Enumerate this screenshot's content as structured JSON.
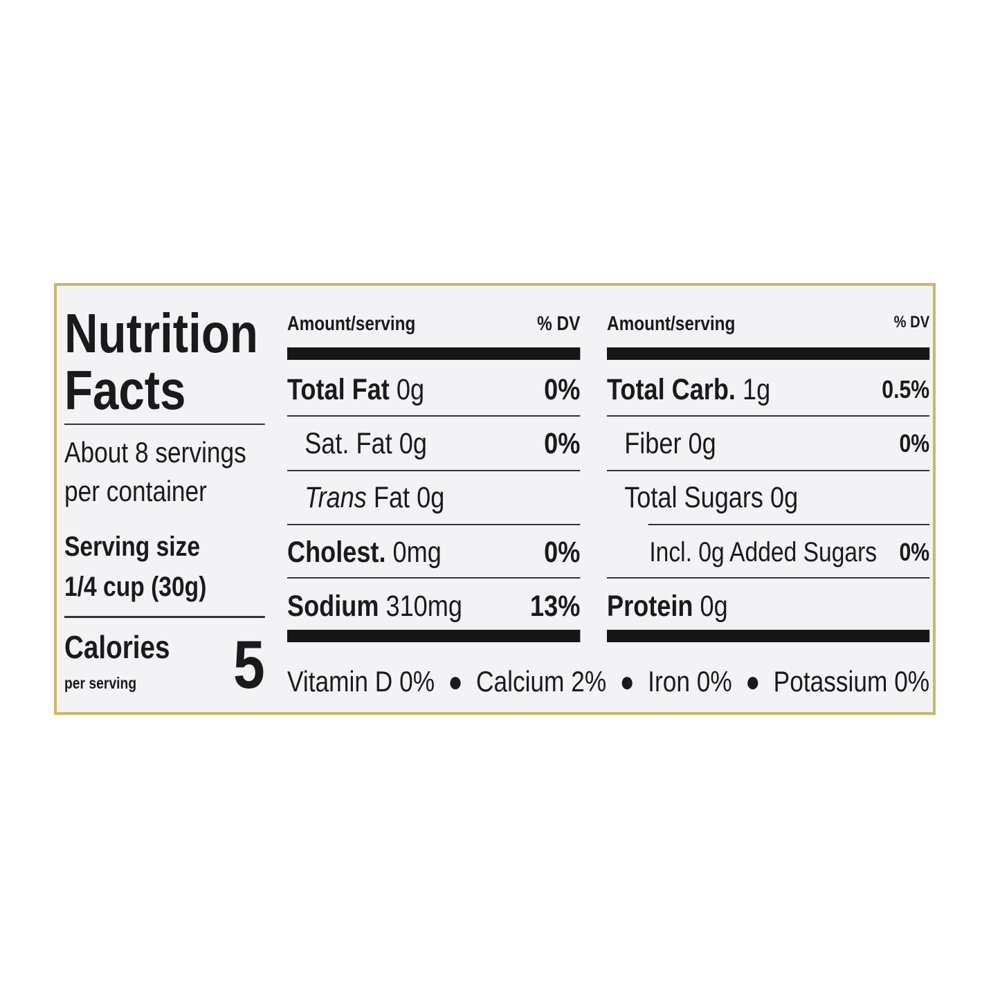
{
  "label": {
    "title": [
      "Nutrition",
      "Facts"
    ],
    "servings": [
      "About 8 servings",
      "per container"
    ],
    "serving_size": {
      "label": "Serving size",
      "value": "1/4 cup (30g)"
    },
    "calories": {
      "label": "Calories",
      "sublabel": "per serving",
      "value": 5
    },
    "columns": [
      {
        "header": {
          "amount": "Amount/serving",
          "dv": "% DV"
        },
        "rows": [
          {
            "name": "Total Fat",
            "amount": "0g",
            "dv": "0%"
          },
          {
            "name": "Sat. Fat",
            "amount": "0g",
            "dv": "0%"
          },
          {
            "prefix": "Trans",
            "name": "Fat",
            "amount": "0g"
          },
          {
            "name": "Cholest.",
            "amount": "0mg",
            "dv": "0%"
          },
          {
            "name": "Sodium",
            "amount": "310mg",
            "dv": "13%"
          }
        ]
      },
      {
        "header": {
          "amount": "Amount/serving",
          "dv": "% DV"
        },
        "rows": [
          {
            "name": "Total Carb.",
            "amount": "1g",
            "dv": "0.5%"
          },
          {
            "name": "Fiber",
            "amount": "0g",
            "dv": "0%"
          },
          {
            "name": "Total Sugars",
            "amount": "0g"
          },
          {
            "name": "Incl. 0g Added Sugars",
            "dv": "0%"
          },
          {
            "name": "Protein",
            "amount": "0g"
          }
        ]
      }
    ],
    "vitamins": [
      "Vitamin D 0%",
      "Calcium 2%",
      "Iron 0%",
      "Potassium 0%"
    ]
  }
}
